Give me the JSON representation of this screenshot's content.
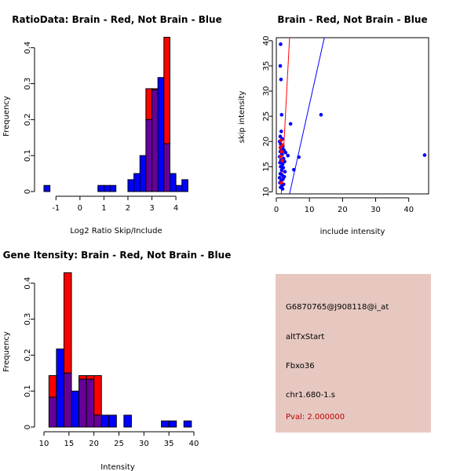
{
  "colors": {
    "red": "#ff0000",
    "blue": "#0000ff",
    "overlap": "#660099",
    "info_bg": "#e6c8c1",
    "pval": "#c00000"
  },
  "chart_data": [
    {
      "type": "bar",
      "subtype": "overlaid-histogram",
      "title": "RatioData: Brain - Red, Not Brain - Blue",
      "xlabel": "Log2 Ratio Skip/Include",
      "ylabel": "Frequency",
      "xlim": [
        -1.5,
        4.75
      ],
      "ylim": [
        0,
        0.43
      ],
      "xticks": [
        -1,
        0,
        1,
        2,
        3,
        4
      ],
      "yticks": [
        0.0,
        0.1,
        0.2,
        0.3,
        0.4
      ],
      "bin_width": 0.25,
      "series": [
        {
          "name": "Not Brain",
          "color": "blue",
          "bins": [
            {
              "x0": -1.5,
              "value": 0.017
            },
            {
              "x0": 0.75,
              "value": 0.017
            },
            {
              "x0": 1.0,
              "value": 0.017
            },
            {
              "x0": 1.25,
              "value": 0.017
            },
            {
              "x0": 2.0,
              "value": 0.033
            },
            {
              "x0": 2.25,
              "value": 0.05
            },
            {
              "x0": 2.5,
              "value": 0.1
            },
            {
              "x0": 2.75,
              "value": 0.2
            },
            {
              "x0": 3.0,
              "value": 0.283
            },
            {
              "x0": 3.25,
              "value": 0.317
            },
            {
              "x0": 3.5,
              "value": 0.133
            },
            {
              "x0": 3.75,
              "value": 0.05
            },
            {
              "x0": 4.0,
              "value": 0.017
            },
            {
              "x0": 4.25,
              "value": 0.033
            }
          ]
        },
        {
          "name": "Brain",
          "color": "red",
          "bins": [
            {
              "x0": 2.75,
              "value": 0.286
            },
            {
              "x0": 3.0,
              "value": 0.286
            },
            {
              "x0": 3.5,
              "value": 0.429
            }
          ]
        }
      ]
    },
    {
      "type": "scatter",
      "title": "Brain - Red, Not Brain - Blue",
      "xlabel": "include intensity",
      "ylabel": "skip intensity",
      "xlim": [
        0,
        46
      ],
      "ylim": [
        9.6,
        40.6
      ],
      "xticks": [
        0,
        10,
        20,
        30,
        40
      ],
      "yticks": [
        10,
        15,
        20,
        25,
        30,
        35,
        40
      ],
      "series": [
        {
          "name": "Not Brain",
          "color": "blue",
          "points": [
            {
              "x": 1.3,
              "y": 39.3
            },
            {
              "x": 1.2,
              "y": 35.0
            },
            {
              "x": 1.4,
              "y": 32.3
            },
            {
              "x": 1.6,
              "y": 25.3
            },
            {
              "x": 13.5,
              "y": 25.3
            },
            {
              "x": 4.3,
              "y": 23.5
            },
            {
              "x": 1.5,
              "y": 22.0
            },
            {
              "x": 1.2,
              "y": 21.0
            },
            {
              "x": 1.8,
              "y": 20.5
            },
            {
              "x": 1.0,
              "y": 20.0
            },
            {
              "x": 1.3,
              "y": 19.5
            },
            {
              "x": 2.0,
              "y": 19.0
            },
            {
              "x": 1.5,
              "y": 18.6
            },
            {
              "x": 2.3,
              "y": 18.3
            },
            {
              "x": 1.2,
              "y": 18.0
            },
            {
              "x": 2.8,
              "y": 17.8
            },
            {
              "x": 1.7,
              "y": 17.5
            },
            {
              "x": 44.8,
              "y": 17.3
            },
            {
              "x": 3.5,
              "y": 17.2
            },
            {
              "x": 1.0,
              "y": 17.0
            },
            {
              "x": 6.8,
              "y": 16.9
            },
            {
              "x": 2.2,
              "y": 16.6
            },
            {
              "x": 1.4,
              "y": 16.3
            },
            {
              "x": 2.5,
              "y": 16.0
            },
            {
              "x": 1.1,
              "y": 15.8
            },
            {
              "x": 1.9,
              "y": 15.5
            },
            {
              "x": 1.3,
              "y": 15.0
            },
            {
              "x": 2.1,
              "y": 14.8
            },
            {
              "x": 5.3,
              "y": 14.4
            },
            {
              "x": 1.6,
              "y": 14.3
            },
            {
              "x": 2.6,
              "y": 14.0
            },
            {
              "x": 1.2,
              "y": 13.6
            },
            {
              "x": 1.8,
              "y": 13.3
            },
            {
              "x": 2.4,
              "y": 13.0
            },
            {
              "x": 1.0,
              "y": 12.8
            },
            {
              "x": 2.0,
              "y": 12.5
            },
            {
              "x": 1.5,
              "y": 12.2
            },
            {
              "x": 1.1,
              "y": 11.8
            },
            {
              "x": 2.2,
              "y": 11.5
            },
            {
              "x": 1.7,
              "y": 11.2
            },
            {
              "x": 1.3,
              "y": 10.9
            },
            {
              "x": 1.9,
              "y": 10.6
            }
          ]
        },
        {
          "name": "Brain",
          "color": "red",
          "points": [
            {
              "x": 1.4,
              "y": 20.2
            },
            {
              "x": 1.9,
              "y": 19.3
            },
            {
              "x": 1.2,
              "y": 18.8
            },
            {
              "x": 1.6,
              "y": 18.0
            },
            {
              "x": 1.3,
              "y": 17.0
            },
            {
              "x": 1.8,
              "y": 16.2
            },
            {
              "x": 1.5,
              "y": 11.8
            }
          ]
        }
      ],
      "fit_lines": [
        {
          "name": "Brain",
          "color": "red",
          "x1": 1.5,
          "y1": 9.6,
          "x2": 4.0,
          "y2": 40.6
        },
        {
          "name": "Not Brain",
          "color": "blue",
          "x1": 4.0,
          "y1": 9.6,
          "x2": 14.5,
          "y2": 40.6
        }
      ]
    },
    {
      "type": "bar",
      "subtype": "overlaid-histogram",
      "title": "Gene Itensity: Brain - Red, Not Brain - Blue",
      "xlabel": "Intensity",
      "ylabel": "Frequency",
      "xlim": [
        10,
        40
      ],
      "ylim": [
        0,
        0.43
      ],
      "xticks": [
        10,
        15,
        20,
        25,
        30,
        35,
        40
      ],
      "yticks": [
        0.0,
        0.1,
        0.2,
        0.3,
        0.4
      ],
      "bin_width": 1.5,
      "series": [
        {
          "name": "Not Brain",
          "color": "blue",
          "bins": [
            {
              "x0": 11.0,
              "value": 0.083
            },
            {
              "x0": 12.5,
              "value": 0.217
            },
            {
              "x0": 14.0,
              "value": 0.15
            },
            {
              "x0": 15.5,
              "value": 0.1
            },
            {
              "x0": 17.0,
              "value": 0.133
            },
            {
              "x0": 18.5,
              "value": 0.133
            },
            {
              "x0": 20.0,
              "value": 0.033
            },
            {
              "x0": 21.5,
              "value": 0.033
            },
            {
              "x0": 23.0,
              "value": 0.033
            },
            {
              "x0": 26.0,
              "value": 0.033
            },
            {
              "x0": 33.5,
              "value": 0.017
            },
            {
              "x0": 35.0,
              "value": 0.017
            },
            {
              "x0": 38.0,
              "value": 0.017
            }
          ]
        },
        {
          "name": "Brain",
          "color": "red",
          "bins": [
            {
              "x0": 11.0,
              "value": 0.143
            },
            {
              "x0": 14.0,
              "value": 0.429
            },
            {
              "x0": 17.0,
              "value": 0.143
            },
            {
              "x0": 18.5,
              "value": 0.143
            },
            {
              "x0": 20.0,
              "value": 0.143
            }
          ]
        }
      ]
    }
  ],
  "info_panel": {
    "probe_id": "G6870765@J908118@i_at",
    "event_type": "altTxStart",
    "gene": "Fbxo36",
    "location": "chr1.680-1.s",
    "pval": "Pval: 2.000000"
  }
}
